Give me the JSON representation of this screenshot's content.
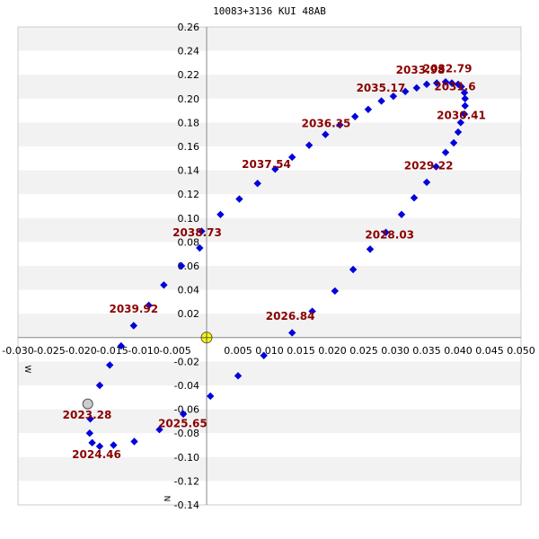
{
  "chart_data": {
    "type": "scatter",
    "title": "10083+3136 KUI  48AB",
    "xlabel": "",
    "ylabel": "",
    "xlim": [
      -0.03,
      0.05
    ],
    "ylim": [
      -0.14,
      0.26
    ],
    "grid": true,
    "compass": {
      "west": "W",
      "north": "N"
    },
    "x_ticks": [
      "-0.030",
      "-0.025",
      "-0.020",
      "-0.015",
      "-0.010",
      "-0.005",
      "0.005",
      "0.010",
      "0.015",
      "0.020",
      "0.025",
      "0.030",
      "0.035",
      "0.040",
      "0.045",
      "0.050"
    ],
    "x_tick_values": [
      -0.03,
      -0.025,
      -0.02,
      -0.015,
      -0.01,
      -0.005,
      0.005,
      0.01,
      0.015,
      0.02,
      0.025,
      0.03,
      0.035,
      0.04,
      0.045,
      0.05
    ],
    "y_ticks": [
      "0.26",
      "0.24",
      "0.22",
      "0.20",
      "0.18",
      "0.16",
      "0.14",
      "0.12",
      "0.10",
      "0.08",
      "0.06",
      "0.04",
      "0.02",
      "-0.02",
      "-0.04",
      "-0.06",
      "-0.08",
      "-0.10",
      "-0.12",
      "-0.14"
    ],
    "y_tick_values": [
      0.26,
      0.24,
      0.22,
      0.2,
      0.18,
      0.16,
      0.14,
      0.12,
      0.1,
      0.08,
      0.06,
      0.04,
      0.02,
      -0.02,
      -0.04,
      -0.06,
      -0.08,
      -0.1,
      -0.12,
      -0.14
    ],
    "primary": {
      "x": 0.0,
      "y": 0.0,
      "color": "#ffff00"
    },
    "current_position": {
      "x": -0.0189,
      "y": -0.0555,
      "color": "#cccccc"
    },
    "series": [
      {
        "color": "#0000dd",
        "points": [
          [
            0.0006,
            -0.049
          ],
          [
            0.005,
            -0.032
          ],
          [
            0.0091,
            -0.015
          ],
          [
            0.0136,
            0.004
          ],
          [
            0.0168,
            0.022
          ],
          [
            0.0204,
            0.039
          ],
          [
            0.0233,
            0.057
          ],
          [
            0.026,
            0.074
          ],
          [
            0.0285,
            0.088
          ],
          [
            0.031,
            0.103
          ],
          [
            0.033,
            0.117
          ],
          [
            0.035,
            0.13
          ],
          [
            0.0365,
            0.143
          ],
          [
            0.038,
            0.155
          ],
          [
            0.0393,
            0.163
          ],
          [
            0.04,
            0.172
          ],
          [
            0.0404,
            0.18
          ],
          [
            0.041,
            0.187
          ],
          [
            0.0411,
            0.194
          ],
          [
            0.0411,
            0.2
          ],
          [
            0.041,
            0.205
          ],
          [
            0.0405,
            0.21
          ],
          [
            0.04,
            0.212
          ],
          [
            0.039,
            0.213
          ],
          [
            0.038,
            0.214
          ],
          [
            0.0366,
            0.213
          ],
          [
            0.035,
            0.212
          ],
          [
            0.0334,
            0.209
          ],
          [
            0.0316,
            0.206
          ],
          [
            0.0297,
            0.202
          ],
          [
            0.0278,
            0.198
          ],
          [
            0.0257,
            0.191
          ],
          [
            0.0236,
            0.185
          ],
          [
            0.0212,
            0.178
          ],
          [
            0.0189,
            0.17
          ],
          [
            0.0163,
            0.161
          ],
          [
            0.0136,
            0.151
          ],
          [
            0.0109,
            0.141
          ],
          [
            0.0081,
            0.129
          ],
          [
            0.0052,
            0.116
          ],
          [
            0.0022,
            0.103
          ],
          [
            -0.0008,
            0.089
          ],
          [
            -0.0011,
            0.075
          ],
          [
            -0.004,
            0.06
          ],
          [
            -0.0068,
            0.044
          ],
          [
            -0.0092,
            0.027
          ],
          [
            -0.0116,
            0.01
          ],
          [
            -0.0136,
            -0.007
          ],
          [
            -0.0154,
            -0.023
          ],
          [
            -0.017,
            -0.04
          ],
          [
            -0.0185,
            -0.068
          ],
          [
            -0.0186,
            -0.08
          ],
          [
            -0.0182,
            -0.088
          ],
          [
            -0.017,
            -0.091
          ],
          [
            -0.0148,
            -0.09
          ],
          [
            -0.0115,
            -0.087
          ],
          [
            -0.0075,
            -0.077
          ],
          [
            -0.0037,
            -0.064
          ]
        ]
      }
    ],
    "annotations": [
      {
        "text": "2023.28",
        "x": -0.019,
        "y": -0.068
      },
      {
        "text": "2024.46",
        "x": -0.0175,
        "y": -0.101
      },
      {
        "text": "2025.65",
        "x": -0.0038,
        "y": -0.075
      },
      {
        "text": "2026.84",
        "x": 0.0133,
        "y": 0.015
      },
      {
        "text": "2028.03",
        "x": 0.0291,
        "y": 0.083
      },
      {
        "text": "2029.22",
        "x": 0.0353,
        "y": 0.141
      },
      {
        "text": "2030.41",
        "x": 0.0405,
        "y": 0.183
      },
      {
        "text": "2031.6",
        "x": 0.0395,
        "y": 0.207
      },
      {
        "text": "2032.79",
        "x": 0.0383,
        "y": 0.222
      },
      {
        "text": "2033.98",
        "x": 0.034,
        "y": 0.221
      },
      {
        "text": "2035.17",
        "x": 0.0277,
        "y": 0.206
      },
      {
        "text": "2036.35",
        "x": 0.019,
        "y": 0.176
      },
      {
        "text": "2037.54",
        "x": 0.0095,
        "y": 0.142
      },
      {
        "text": "2038.73",
        "x": -0.0015,
        "y": 0.085
      },
      {
        "text": "2039.92",
        "x": -0.0116,
        "y": 0.021
      }
    ]
  }
}
